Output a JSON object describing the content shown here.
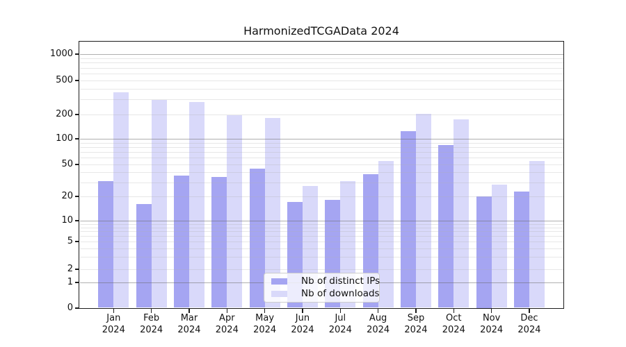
{
  "figure": {
    "background": "#ffffff"
  },
  "chart_data": {
    "type": "bar",
    "title": "HarmonizedTCGAData 2024",
    "categories": [
      "Jan",
      "Feb",
      "Mar",
      "Apr",
      "May",
      "Jun",
      "Jul",
      "Aug",
      "Sep",
      "Oct",
      "Nov",
      "Dec"
    ],
    "year": "2024",
    "x_tick_label_format": "month newline year",
    "series": [
      {
        "name": "Nb of distinct IPs",
        "color": "#a5a5f2",
        "values": [
          31,
          16,
          36,
          35,
          44,
          17,
          18,
          38,
          124,
          84,
          20,
          23
        ]
      },
      {
        "name": "Nb of downloads",
        "color": "#d9d9fa",
        "values": [
          362,
          294,
          282,
          197,
          181,
          27,
          31,
          55,
          203,
          174,
          28,
          55
        ]
      }
    ],
    "y_axis": {
      "scale": "symlog-like (log above 1, compressed linear below)",
      "ticks": [
        0,
        1,
        2,
        5,
        10,
        20,
        50,
        100,
        200,
        500,
        1000
      ],
      "range": [
        0,
        1500
      ]
    },
    "grid": {
      "major_lines": [
        1,
        10,
        100,
        1000
      ],
      "minor_lines": "2,3,4,5,6,7,8,9 of each decade",
      "major_color": "#b2b2b2",
      "minor_color": "#e9e9e9"
    },
    "legend_position": "inside plot, lower middle",
    "bar_colors": {
      "distinct_ips": "#a5a5f2",
      "downloads": "#d9d9fa"
    }
  }
}
